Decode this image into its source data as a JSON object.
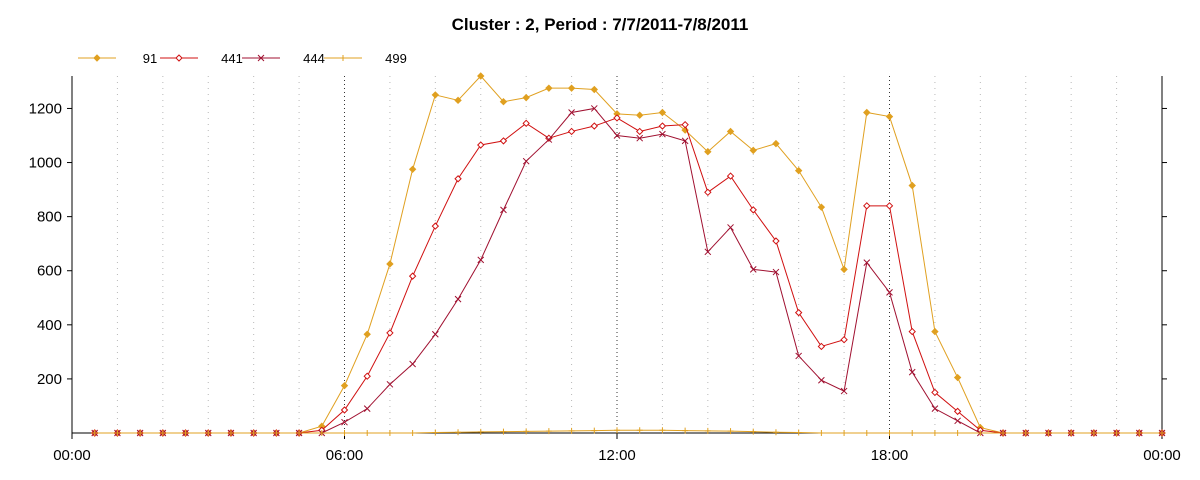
{
  "chart_data": {
    "type": "line",
    "title": "Cluster : 2, Period : 7/7/2011-7/8/2011",
    "xlabel": "",
    "ylabel": "",
    "x_unit": "hours",
    "xlim": [
      0,
      24
    ],
    "ylim": [
      0,
      1320
    ],
    "x_ticks": [
      {
        "value": 0,
        "label": "00:00"
      },
      {
        "value": 6,
        "label": "06:00"
      },
      {
        "value": 12,
        "label": "12:00"
      },
      {
        "value": 18,
        "label": "18:00"
      },
      {
        "value": 24,
        "label": "00:00"
      }
    ],
    "y_ticks": [
      200,
      400,
      600,
      800,
      1000,
      1200
    ],
    "grid": true,
    "legend_position": "top-left",
    "x": [
      0.5,
      1.0,
      1.5,
      2.0,
      2.5,
      3.0,
      3.5,
      4.0,
      4.5,
      5.0,
      5.5,
      6.0,
      6.5,
      7.0,
      7.5,
      8.0,
      8.5,
      9.0,
      9.5,
      10.0,
      10.5,
      11.0,
      11.5,
      12.0,
      12.5,
      13.0,
      13.5,
      14.0,
      14.5,
      15.0,
      15.5,
      16.0,
      16.5,
      17.0,
      17.5,
      18.0,
      18.5,
      19.0,
      19.5,
      20.0,
      20.5,
      21.0,
      21.5,
      22.0,
      22.5,
      23.0,
      23.5,
      24.0
    ],
    "series": [
      {
        "name": "91",
        "color": "#E0A020",
        "marker": "diamond",
        "values": [
          0,
          0,
          0,
          0,
          0,
          0,
          0,
          0,
          0,
          0,
          25,
          175,
          365,
          625,
          975,
          1250,
          1230,
          1320,
          1225,
          1240,
          1275,
          1275,
          1270,
          1180,
          1175,
          1185,
          1120,
          1040,
          1115,
          1045,
          1070,
          970,
          835,
          605,
          1185,
          1170,
          915,
          375,
          205,
          20,
          0,
          0,
          0,
          0,
          0,
          0,
          0,
          0
        ]
      },
      {
        "name": "441",
        "color": "#D01010",
        "marker": "diamond-open",
        "values": [
          0,
          0,
          0,
          0,
          0,
          0,
          0,
          0,
          0,
          0,
          10,
          85,
          210,
          370,
          580,
          765,
          940,
          1065,
          1080,
          1145,
          1090,
          1115,
          1135,
          1165,
          1115,
          1135,
          1140,
          890,
          950,
          825,
          710,
          445,
          320,
          345,
          840,
          840,
          375,
          150,
          80,
          10,
          0,
          0,
          0,
          0,
          0,
          0,
          0,
          0
        ]
      },
      {
        "name": "444",
        "color": "#A01030",
        "marker": "x",
        "values": [
          0,
          0,
          0,
          0,
          0,
          0,
          0,
          0,
          0,
          0,
          0,
          40,
          90,
          180,
          255,
          365,
          495,
          640,
          825,
          1005,
          1085,
          1185,
          1200,
          1100,
          1090,
          1105,
          1080,
          670,
          760,
          605,
          595,
          285,
          195,
          155,
          630,
          520,
          225,
          90,
          45,
          0,
          0,
          0,
          0,
          0,
          0,
          0,
          0,
          0
        ]
      },
      {
        "name": "499",
        "color": "#E0A020",
        "marker": "plus",
        "values": [
          0,
          0,
          0,
          0,
          0,
          0,
          0,
          0,
          0,
          0,
          0,
          0,
          0,
          0,
          0,
          2,
          3,
          4,
          5,
          6,
          7,
          8,
          9,
          10,
          10,
          10,
          9,
          8,
          7,
          5,
          3,
          2,
          0,
          0,
          0,
          0,
          0,
          0,
          0,
          0,
          0,
          0,
          0,
          0,
          0,
          0,
          0,
          0
        ]
      }
    ]
  }
}
